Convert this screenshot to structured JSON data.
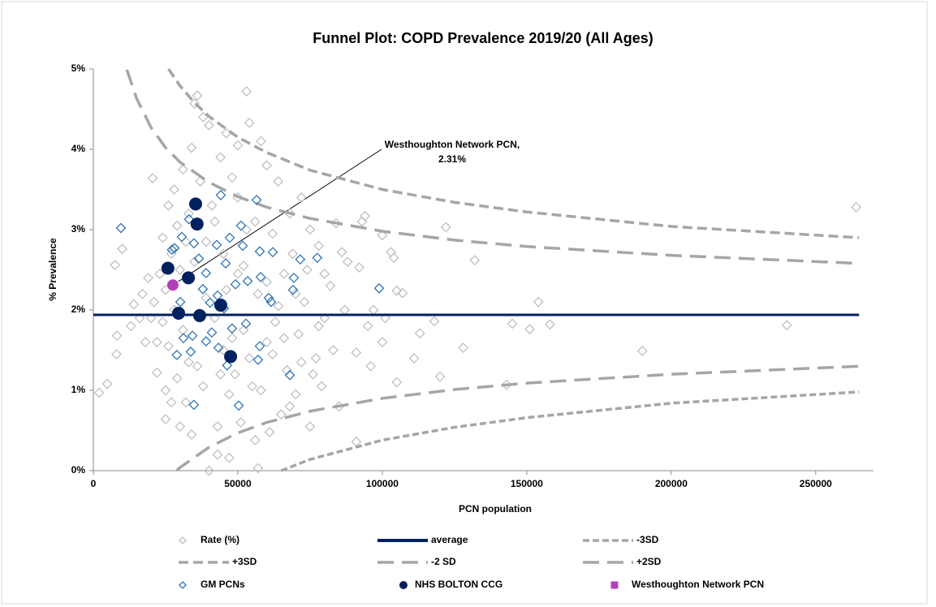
{
  "chart_data": {
    "type": "scatter",
    "title": "Funnel Plot: COPD Prevalence 2019/20 (All Ages)",
    "x_label": "PCN population",
    "y_label": "% Prevalence",
    "xlim": [
      0,
      270000
    ],
    "ylim": [
      0,
      5
    ],
    "xticks": [
      0,
      50000,
      100000,
      150000,
      200000,
      250000
    ],
    "yticks": [
      {
        "value": 0,
        "label": "0%"
      },
      {
        "value": 1,
        "label": "1%"
      },
      {
        "value": 2,
        "label": "2%"
      },
      {
        "value": 3,
        "label": "3%"
      },
      {
        "value": 4,
        "label": "4%"
      },
      {
        "value": 5,
        "label": "5%"
      }
    ],
    "annotation": {
      "lines": [
        "Westhoughton Network PCN,",
        "2.31%"
      ],
      "x": 27500,
      "y": 2.31
    },
    "series": [
      {
        "name": "Rate (%)",
        "color": "#bfbfbf",
        "marker": "diamond",
        "x": [
          2000,
          4800,
          8000,
          8200,
          7500,
          10000,
          14000,
          13000,
          20500,
          22000,
          25000,
          264000,
          240000,
          190000,
          158000,
          154000,
          151000,
          145000,
          143000,
          132000,
          128000,
          122000,
          120000,
          118000,
          113000,
          111000,
          107000,
          105000,
          105000,
          104000,
          103000,
          101000,
          100000,
          100000,
          97000,
          96000,
          95000,
          94000,
          93000,
          92000,
          91000,
          91000,
          88000,
          87000,
          86000,
          85000,
          84000,
          83000,
          82000,
          80000,
          79000,
          78000,
          77000,
          75000,
          75000,
          73000,
          72000,
          71000,
          70000,
          69000,
          68000,
          67000,
          66000,
          65000,
          64000,
          63000,
          62000,
          61000,
          60000,
          60000,
          58000,
          57000,
          56000,
          55000,
          54000,
          53000,
          53000,
          52000,
          51000,
          50000,
          50000,
          49000,
          48000,
          47000,
          46000,
          45000,
          45000,
          44000,
          43000,
          42000,
          41000,
          40000,
          40000,
          39000,
          38000,
          38000,
          37000,
          36000,
          35000,
          35000,
          34000,
          34000,
          33000,
          33000,
          32000,
          32000,
          31000,
          31000,
          30000,
          30000,
          29000,
          29000,
          28000,
          28000,
          27000,
          27000,
          26000,
          26000,
          25000,
          25000,
          24000,
          24000,
          23000,
          22000,
          21000,
          20000,
          19000,
          18000,
          17000,
          16000,
          36000,
          39000,
          42000,
          44000,
          46000,
          48000,
          50000,
          52000,
          54000,
          56000,
          58000,
          60000,
          62000,
          64000,
          66000,
          68000,
          70000,
          72000,
          74000,
          76000,
          78000,
          80000,
          43000,
          47000,
          57000
        ],
        "values": [
          0.97,
          1.08,
          1.45,
          1.68,
          2.56,
          2.76,
          2.07,
          1.8,
          3.64,
          1.22,
          0.64,
          3.28,
          1.81,
          1.49,
          1.82,
          2.1,
          1.76,
          1.83,
          1.07,
          2.62,
          1.53,
          3.03,
          1.17,
          1.86,
          1.71,
          1.4,
          2.21,
          2.24,
          1.1,
          2.65,
          2.72,
          1.9,
          2.93,
          1.6,
          2.0,
          1.3,
          1.8,
          3.17,
          3.1,
          2.53,
          1.47,
          0.36,
          2.6,
          2.0,
          2.72,
          0.8,
          3.08,
          1.5,
          2.3,
          1.9,
          1.05,
          2.8,
          1.4,
          3.0,
          0.55,
          2.1,
          3.4,
          1.7,
          0.95,
          2.7,
          3.2,
          1.25,
          2.45,
          0.7,
          3.6,
          1.85,
          2.95,
          0.48,
          3.8,
          1.6,
          4.1,
          2.2,
          0.38,
          1.05,
          4.33,
          4.72,
          3.0,
          1.75,
          0.6,
          4.05,
          2.45,
          1.2,
          3.65,
          0.95,
          4.2,
          2.7,
          1.5,
          3.9,
          0.55,
          1.9,
          3.3,
          4.3,
          0.0,
          2.15,
          1.05,
          4.4,
          3.6,
          4.67,
          4.57,
          2.6,
          4.02,
          0.45,
          1.35,
          3.2,
          0.85,
          2.85,
          3.75,
          1.75,
          2.5,
          0.55,
          3.05,
          1.15,
          3.5,
          2.0,
          0.85,
          2.7,
          1.55,
          3.3,
          2.25,
          1.0,
          1.85,
          2.9,
          2.45,
          1.6,
          2.1,
          1.9,
          2.4,
          1.6,
          2.2,
          1.9,
          1.3,
          2.85,
          3.1,
          1.2,
          2.25,
          1.65,
          3.4,
          2.55,
          1.4,
          3.1,
          1.0,
          2.35,
          1.45,
          2.05,
          1.65,
          0.8,
          2.2,
          1.35,
          2.5,
          1.2,
          1.8,
          2.45,
          0.2,
          0.16,
          0.03
        ]
      },
      {
        "name": "average",
        "color": "#002060",
        "linestyle": "solid",
        "x": [
          0,
          265000
        ],
        "values": [
          1.94,
          1.94
        ]
      },
      {
        "name": "-3SD",
        "color": "#a6a6a6",
        "linestyle": "short",
        "x": [
          65000,
          75000,
          100000,
          125000,
          150000,
          200000,
          265000
        ],
        "values": [
          0.0,
          0.14,
          0.38,
          0.54,
          0.66,
          0.84,
          0.98
        ]
      },
      {
        "name": "+3SD",
        "color": "#a6a6a6",
        "linestyle": "medium",
        "x": [
          26000,
          30000,
          35000,
          40000,
          50000,
          60000,
          75000,
          100000,
          125000,
          150000,
          200000,
          265000
        ],
        "values": [
          5.0,
          4.79,
          4.58,
          4.41,
          4.15,
          3.96,
          3.74,
          3.5,
          3.34,
          3.22,
          3.04,
          2.9
        ]
      },
      {
        "name": "-2 SD",
        "color": "#a6a6a6",
        "linestyle": "long",
        "x": [
          28800,
          30000,
          40000,
          50000,
          60000,
          75000,
          100000,
          125000,
          150000,
          200000,
          265000
        ],
        "values": [
          0.0,
          0.04,
          0.29,
          0.47,
          0.6,
          0.74,
          0.9,
          1.01,
          1.09,
          1.2,
          1.3
        ]
      },
      {
        "name": "+2SD",
        "color": "#a6a6a6",
        "linestyle": "long",
        "x": [
          11600,
          15000,
          20000,
          25000,
          30000,
          40000,
          50000,
          60000,
          75000,
          100000,
          125000,
          150000,
          200000,
          265000
        ],
        "values": [
          4.99,
          4.63,
          4.27,
          4.02,
          3.84,
          3.59,
          3.41,
          3.28,
          3.14,
          2.98,
          2.87,
          2.79,
          2.68,
          2.58
        ]
      },
      {
        "name": "GM PCNs",
        "color": "#2e75b6",
        "marker": "diamond",
        "x": [
          9550,
          28100,
          44100,
          56500,
          33100,
          51100,
          30600,
          47200,
          34800,
          42700,
          51700,
          27200,
          57600,
          62100,
          77500,
          71600,
          36500,
          45800,
          39000,
          69400,
          57900,
          53400,
          49200,
          98900,
          37900,
          69100,
          43000,
          60700,
          61500,
          30100,
          40400,
          45200,
          52800,
          48000,
          41000,
          39000,
          31200,
          34300,
          43300,
          57600,
          57000,
          33700,
          28900,
          46300,
          68000,
          34800,
          50300
        ],
        "values": [
          3.02,
          2.77,
          3.43,
          3.37,
          3.13,
          3.05,
          2.91,
          2.9,
          2.83,
          2.81,
          2.8,
          2.75,
          2.73,
          2.72,
          2.65,
          2.63,
          2.64,
          2.58,
          2.46,
          2.4,
          2.41,
          2.36,
          2.32,
          2.27,
          2.26,
          2.25,
          2.18,
          2.15,
          2.1,
          2.1,
          2.09,
          2.02,
          1.83,
          1.77,
          1.72,
          1.61,
          1.65,
          1.68,
          1.53,
          1.55,
          1.38,
          1.48,
          1.44,
          1.31,
          1.19,
          0.82,
          0.81
        ]
      },
      {
        "name": "NHS BOLTON CCG",
        "color": "#002060",
        "marker": "circle",
        "x": [
          25800,
          32900,
          35400,
          35900,
          29500,
          36800,
          44100,
          47500
        ],
        "values": [
          2.52,
          2.4,
          3.32,
          3.07,
          1.96,
          1.93,
          2.06,
          1.42
        ]
      },
      {
        "name": "Westhoughton Network PCN",
        "color": "#b13fb8",
        "marker": "circle",
        "legend_marker": "square",
        "x": [
          27500
        ],
        "values": [
          2.31
        ]
      }
    ]
  }
}
